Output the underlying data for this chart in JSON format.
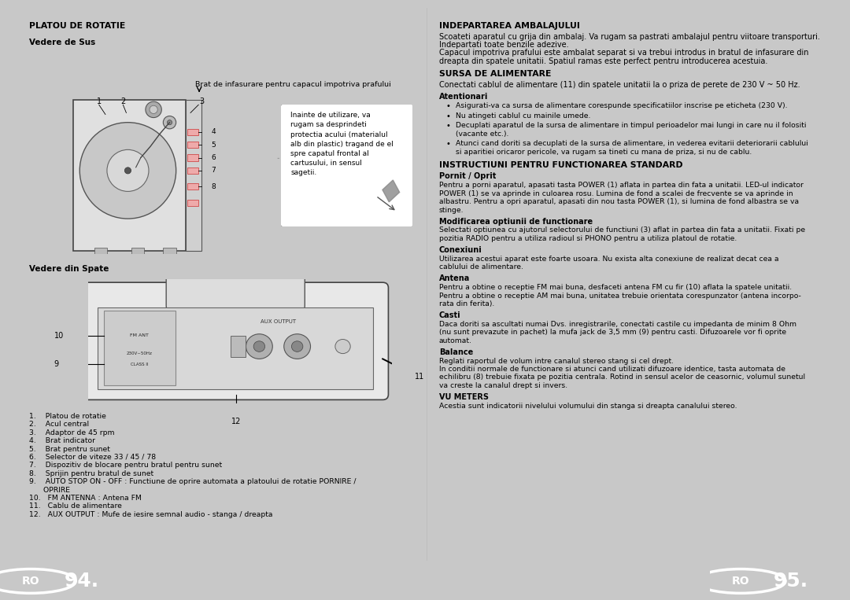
{
  "bg_color": "#c8c8c8",
  "page_bg": "#ffffff",
  "footer_bg": "#888888",
  "footer_left_text": "94.",
  "footer_right_text": "95.",
  "title_left": "PLATOU DE ROTATIE",
  "subtitle1": "Vedere de Sus",
  "subtitle2": "Vedere din Spate",
  "brat_label": "Brat de infasurare pentru capacul impotriva prafului",
  "callout_text": "Inainte de utilizare, va\nrugam sa desprindeti\nprotectia acului (materialul\nalb din plastic) tragand de el\nspre capatul frontal al\ncartusului, in sensul\nsagetii.",
  "parts_list": [
    "1.    Platou de rotatie",
    "2.    Acul central",
    "3.    Adaptor de 45 rpm",
    "4.    Brat indicator",
    "5.    Brat pentru sunet",
    "6.    Selector de viteze 33 / 45 / 78",
    "7.    Dispozitiv de blocare pentru bratul pentru sunet",
    "8.    Sprijin pentru bratul de sunet",
    "9.    AUTO STOP ON - OFF : Functiune de oprire automata a platoului de rotatie PORNIRE /",
    "      OPRIRE",
    "10.   FM ANTENNA : Antena FM",
    "11.   Cablu de alimentare",
    "12.   AUX OUTPUT : Mufe de iesire semnal audio - stanga / dreapta"
  ],
  "right_title1": "INDEPARTAREA AMBALAJULUI",
  "right_body1": "Scoateti aparatul cu grija din ambalaj. Va rugam sa pastrati ambalajul pentru viitoare transporturi.\nIndepartati toate benzile adezive.\nCapacul impotriva prafului este ambalat separat si va trebui introdus in bratul de infasurare din\ndreapta din spatele unitatii. Spatiul ramas este perfect pentru introducerea acestuia.",
  "right_title2": "SURSA DE ALIMENTARE",
  "right_body2": "Conectati cablul de alimentare (11) din spatele unitatii la o priza de perete de 230 V ~ 50 Hz.",
  "right_subtitle2a": "Atentionari",
  "right_bullets2": [
    "Asigurati-va ca sursa de alimentare corespunde specificatiilor inscrise pe eticheta (230 V).",
    "Nu atingeti cablul cu mainile umede.",
    "Decuplati aparatul de la sursa de alimentare in timpul perioadelor mai lungi in care nu il folositi\n(vacante etc.).",
    "Atunci cand doriti sa decuplati de la sursa de alimentare, in vederea evitarii deteriorarii cablului\nsi aparitiei oricaror pericole, va rugam sa tineti cu mana de priza, si nu de cablu."
  ],
  "right_title3": "INSTRUCTIUNI PENTRU FUNCTIONAREA STANDARD",
  "right_subtitle3a": "Pornit / Oprit",
  "right_body3a": "Pentru a porni aparatul, apasati tasta POWER (1) aflata in partea din fata a unitatii. LED-ul indicator\nPOWER (1) se va aprinde in culoarea rosu. Lumina de fond a scalei de frecvente se va aprinde in\nalbastru. Pentru a opri aparatul, apasati din nou tasta POWER (1), si lumina de fond albastra se va\nstinge.",
  "right_subtitle3b": "Modificarea optiunii de functionare",
  "right_body3b": "Selectati optiunea cu ajutorul selectorului de functiuni (3) aflat in partea din fata a unitatii. Fixati pe\npozitia RADIO pentru a utiliza radioul si PHONO pentru a utiliza platoul de rotatie.",
  "right_subtitle3c": "Conexiuni",
  "right_body3c": "Utilizarea acestui aparat este foarte usoara. Nu exista alta conexiune de realizat decat cea a\ncablului de alimentare.",
  "right_subtitle3d": "Antena",
  "right_body3d": "Pentru a obtine o receptie FM mai buna, desfaceti antena FM cu fir (10) aflata la spatele unitatii.\nPentru a obtine o receptie AM mai buna, unitatea trebuie orientata corespunzator (antena incorpo-\nrata din ferita).",
  "right_subtitle3e": "Casti",
  "right_body3e": "Daca doriti sa ascultati numai Dvs. inregistrarile, conectati castile cu impedanta de minim 8 Ohm\n(nu sunt prevazute in pachet) la mufa jack de 3,5 mm (9) pentru casti. Difuzoarele vor fi oprite\nautomat.",
  "right_subtitle3f": "Balance",
  "right_body3f": "Reglati raportul de volum intre canalul stereo stang si cel drept.\nIn conditii normale de functionare si atunci cand utilizati difuzoare identice, tasta automata de\nechilibru (8) trebuie fixata pe pozitia centrala. Rotind in sensul acelor de ceasornic, volumul sunetul\nva creste la canalul drept si invers.",
  "right_subtitle3g": "VU METERS",
  "right_body3g": "Acestia sunt indicatorii nivelului volumului din stanga si dreapta canalului stereo."
}
